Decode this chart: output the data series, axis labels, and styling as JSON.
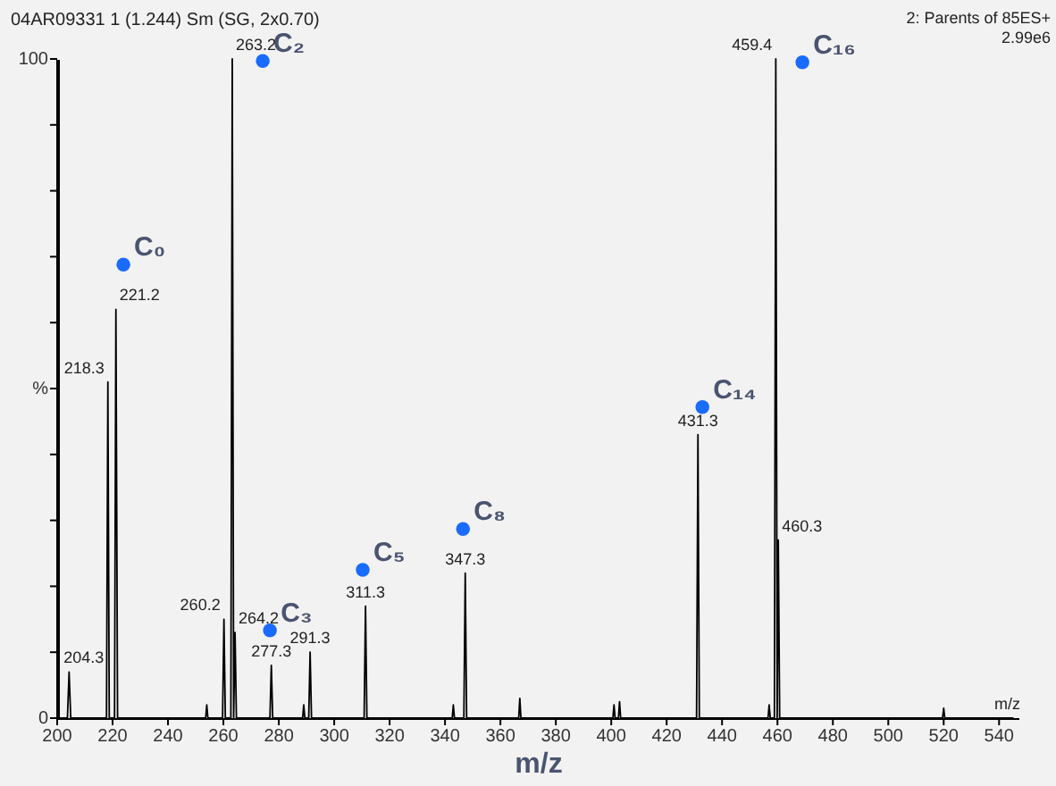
{
  "chart_data": {
    "type": "line",
    "title": "04AR09331  1 (1.244) Sm (SG, 2x0.70)",
    "xlabel": "m/z",
    "xlim": [
      200,
      547
    ],
    "xticks": [
      200,
      220,
      240,
      260,
      280,
      300,
      320,
      340,
      360,
      380,
      400,
      420,
      440,
      460,
      480,
      500,
      520,
      540
    ],
    "ylim": [
      0,
      100
    ],
    "yticks": [
      0,
      {
        "value": 10,
        "label": null
      },
      {
        "value": 20,
        "label": null
      },
      {
        "value": 30,
        "label": null
      },
      {
        "value": 40,
        "label": null
      },
      {
        "value": 50,
        "label": "%"
      },
      {
        "value": 60,
        "label": null
      },
      {
        "value": 70,
        "label": null
      },
      {
        "value": 80,
        "label": null
      },
      {
        "value": 90,
        "label": null
      },
      100
    ],
    "grid": false,
    "series": [
      {
        "color": "#000000",
        "x": [
          200,
          203.7,
          204.3,
          204.9,
          217.8,
          218.3,
          218.8,
          220.7,
          221.2,
          221.8,
          253.6,
          254,
          254.4,
          259.7,
          260.2,
          260.7,
          262.7,
          263.2,
          263.7,
          264.2,
          264.7,
          276.8,
          277.3,
          277.8,
          288.6,
          289,
          289.4,
          290.8,
          291.3,
          291.8,
          310.8,
          311.3,
          311.8,
          342.6,
          343,
          343.4,
          346.8,
          347.3,
          347.8,
          366.6,
          367,
          367.4,
          400.6,
          401,
          401.4,
          402.6,
          403,
          403.4,
          430.8,
          431.3,
          431.8,
          456.6,
          457,
          457.4,
          458.9,
          459.4,
          459.9,
          460.3,
          460.8,
          519.6,
          520,
          520.4,
          545
        ],
        "values": [
          0,
          0,
          7,
          0,
          0,
          51,
          0,
          0,
          62,
          0,
          0,
          2,
          0,
          0,
          15,
          0,
          0,
          100,
          0,
          13,
          0,
          0,
          8,
          0,
          0,
          2,
          0,
          0,
          10,
          0,
          0,
          17,
          0,
          0,
          2,
          0,
          0,
          22,
          0,
          0,
          3,
          0,
          0,
          2,
          0,
          0,
          2.5,
          0,
          0,
          43,
          0,
          0,
          2,
          0,
          0,
          100,
          0,
          27,
          0,
          0,
          1.5,
          0,
          0
        ]
      },
      {
        "type": "scatter",
        "name": "C₀",
        "color": "#1a6bff",
        "x": [
          223.9
        ],
        "values": [
          68.8
        ]
      },
      {
        "type": "scatter",
        "name": "C₂",
        "color": "#1a6bff",
        "x": [
          274.2
        ],
        "values": [
          99.7
        ]
      },
      {
        "type": "scatter",
        "name": "C₃",
        "color": "#1a6bff",
        "x": [
          276.8
        ],
        "values": [
          13.3
        ]
      },
      {
        "type": "scatter",
        "name": "C₅",
        "color": "#1a6bff",
        "x": [
          310.3
        ],
        "values": [
          22.5
        ]
      },
      {
        "type": "scatter",
        "name": "C₈",
        "color": "#1a6bff",
        "x": [
          346.5
        ],
        "values": [
          28.7
        ]
      },
      {
        "type": "scatter",
        "name": "C₁₄",
        "color": "#1a6bff",
        "x": [
          432.9
        ],
        "values": [
          47.2
        ]
      },
      {
        "type": "scatter",
        "name": "C₁₆",
        "color": "#1a6bff",
        "x": [
          469
        ],
        "values": [
          99.5
        ]
      }
    ],
    "annotations": [
      "2: Parents of 85ES+",
      "2.99e6",
      {
        "text": "204.3",
        "x": 204.3,
        "y": 7
      },
      {
        "text": "218.3",
        "x": 218.3,
        "y": 51
      },
      {
        "text": "221.2",
        "x": 221.2,
        "y": 62
      },
      {
        "text": "260.2",
        "x": 260.2,
        "y": 15
      },
      {
        "text": "263.2",
        "x": 263.2,
        "y": 100
      },
      {
        "text": "264.2",
        "x": 264.2,
        "y": 13
      },
      {
        "text": "277.3",
        "x": 277.3,
        "y": 8
      },
      {
        "text": "291.3",
        "x": 291.3,
        "y": 10
      },
      {
        "text": "311.3",
        "x": 311.3,
        "y": 17
      },
      {
        "text": "347.3",
        "x": 347.3,
        "y": 22
      },
      {
        "text": "431.3",
        "x": 431.3,
        "y": 43
      },
      {
        "text": "459.4",
        "x": 459.4,
        "y": 100
      },
      {
        "text": "460.3",
        "x": 460.3,
        "y": 27
      },
      {
        "text": "m/z",
        "x": 543,
        "y": 0
      }
    ]
  }
}
